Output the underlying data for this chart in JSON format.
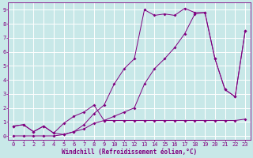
{
  "xlabel": "Windchill (Refroidissement éolien,°C)",
  "bg_color": "#c8e8e8",
  "line_color": "#800080",
  "grid_color": "#ffffff",
  "xlim": [
    -0.5,
    23.5
  ],
  "ylim": [
    -0.3,
    9.5
  ],
  "xticks": [
    0,
    1,
    2,
    3,
    4,
    5,
    6,
    7,
    8,
    9,
    10,
    11,
    12,
    13,
    14,
    15,
    16,
    17,
    18,
    19,
    20,
    21,
    22,
    23
  ],
  "yticks": [
    0,
    1,
    2,
    3,
    4,
    5,
    6,
    7,
    8,
    9
  ],
  "line1_x": [
    0,
    1,
    2,
    3,
    4,
    5,
    6,
    7,
    8,
    9,
    10,
    11,
    12,
    13,
    14,
    15,
    16,
    17,
    18,
    19,
    20,
    21,
    22,
    23
  ],
  "line1_y": [
    0.7,
    0.8,
    0.3,
    0.7,
    0.2,
    0.1,
    0.3,
    0.8,
    1.6,
    2.2,
    3.7,
    4.8,
    5.5,
    9.0,
    8.6,
    8.7,
    8.6,
    9.1,
    8.8,
    8.8,
    5.5,
    3.3,
    2.8,
    7.5
  ],
  "line2_x": [
    0,
    1,
    2,
    3,
    4,
    5,
    6,
    7,
    8,
    9,
    10,
    11,
    12,
    13,
    14,
    15,
    16,
    17,
    18,
    19,
    20,
    21,
    22,
    23
  ],
  "line2_y": [
    0.0,
    0.0,
    0.0,
    0.0,
    0.0,
    0.1,
    0.3,
    0.5,
    0.9,
    1.1,
    1.4,
    1.7,
    2.0,
    3.7,
    4.8,
    5.5,
    6.3,
    7.3,
    8.7,
    8.8,
    5.5,
    3.3,
    2.8,
    7.5
  ],
  "line3_x": [
    0,
    1,
    2,
    3,
    4,
    5,
    6,
    7,
    8,
    9,
    10,
    11,
    12,
    13,
    14,
    15,
    16,
    17,
    18,
    19,
    20,
    21,
    22,
    23
  ],
  "line3_y": [
    0.7,
    0.8,
    0.3,
    0.7,
    0.2,
    0.9,
    1.4,
    1.7,
    2.2,
    1.1,
    1.1,
    1.1,
    1.1,
    1.1,
    1.1,
    1.1,
    1.1,
    1.1,
    1.1,
    1.1,
    1.1,
    1.1,
    1.1,
    1.2
  ],
  "xlabel_fontsize": 5.5,
  "tick_fontsize": 5.0
}
